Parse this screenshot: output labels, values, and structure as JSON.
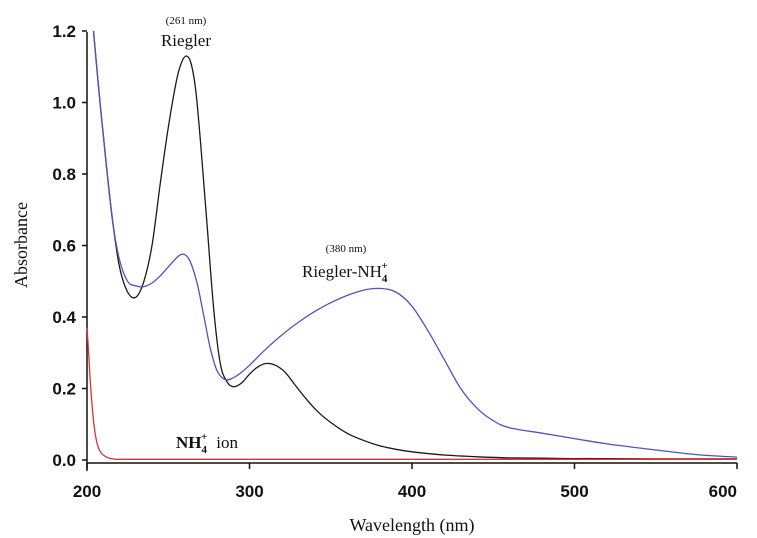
{
  "chart_data": {
    "type": "line",
    "title": "",
    "xlabel": "Wavelength (nm)",
    "ylabel": "Absorbance",
    "xlim": [
      200,
      600
    ],
    "ylim": [
      0.0,
      1.2
    ],
    "x_ticks": [
      "200",
      "300",
      "400",
      "500",
      "600"
    ],
    "y_ticks": [
      "0.0",
      "0.2",
      "0.4",
      "0.6",
      "0.8",
      "1.0",
      "1.2"
    ],
    "grid": false,
    "legend": "none",
    "series": [
      {
        "color": "#1a1a1a",
        "x": [
          204,
          208,
          212,
          216,
          220,
          225,
          230,
          235,
          240,
          245,
          250,
          255,
          258,
          261,
          264,
          267,
          270,
          274,
          278,
          282,
          286,
          290,
          295,
          300,
          305,
          310,
          316,
          322,
          328,
          335,
          342,
          350,
          360,
          370,
          380,
          390,
          400,
          420,
          440,
          460,
          480,
          500,
          520,
          550,
          600
        ],
        "y": [
          1.2,
          1.0,
          0.82,
          0.66,
          0.54,
          0.47,
          0.455,
          0.5,
          0.6,
          0.77,
          0.93,
          1.06,
          1.11,
          1.13,
          1.11,
          1.03,
          0.88,
          0.65,
          0.42,
          0.27,
          0.22,
          0.205,
          0.215,
          0.24,
          0.26,
          0.27,
          0.265,
          0.245,
          0.21,
          0.17,
          0.135,
          0.105,
          0.075,
          0.055,
          0.04,
          0.03,
          0.023,
          0.014,
          0.009,
          0.006,
          0.005,
          0.004,
          0.004,
          0.003,
          0.003
        ]
      },
      {
        "color": "#4b56b8",
        "x": [
          204,
          208,
          212,
          216,
          220,
          225,
          230,
          235,
          240,
          245,
          250,
          255,
          258,
          261,
          264,
          268,
          272,
          276,
          280,
          285,
          290,
          295,
          300,
          310,
          320,
          330,
          340,
          350,
          360,
          370,
          380,
          390,
          400,
          410,
          420,
          430,
          440,
          450,
          460,
          480,
          500,
          520,
          550,
          575,
          600
        ],
        "y": [
          1.2,
          1.0,
          0.82,
          0.66,
          0.56,
          0.5,
          0.487,
          0.485,
          0.495,
          0.515,
          0.54,
          0.565,
          0.575,
          0.572,
          0.55,
          0.49,
          0.4,
          0.31,
          0.25,
          0.225,
          0.23,
          0.245,
          0.265,
          0.31,
          0.35,
          0.385,
          0.415,
          0.44,
          0.46,
          0.475,
          0.48,
          0.47,
          0.43,
          0.36,
          0.28,
          0.2,
          0.145,
          0.11,
          0.09,
          0.075,
          0.06,
          0.045,
          0.028,
          0.015,
          0.008
        ]
      },
      {
        "color": "#e03030",
        "x": [
          200,
          201,
          202,
          203,
          204,
          205,
          206,
          207,
          208,
          209,
          210,
          212,
          214,
          216,
          218,
          220,
          230,
          260,
          300,
          400,
          500,
          600
        ],
        "y": [
          0.37,
          0.3,
          0.22,
          0.16,
          0.11,
          0.075,
          0.05,
          0.035,
          0.025,
          0.018,
          0.014,
          0.008,
          0.005,
          0.003,
          0.002,
          0.002,
          0.002,
          0.002,
          0.002,
          0.002,
          0.002,
          0.002
        ]
      }
    ],
    "annotations": {
      "riegler_peak": "(261 nm)",
      "riegler_label": "Riegler",
      "complex_peak": "(380 nm)",
      "complex_label": "Riegler-NH",
      "complex_sub": "4",
      "complex_sup": "+",
      "ion_label": "NH",
      "ion_sub": "4",
      "ion_sup": "+",
      "ion_suffix": "ion"
    }
  }
}
